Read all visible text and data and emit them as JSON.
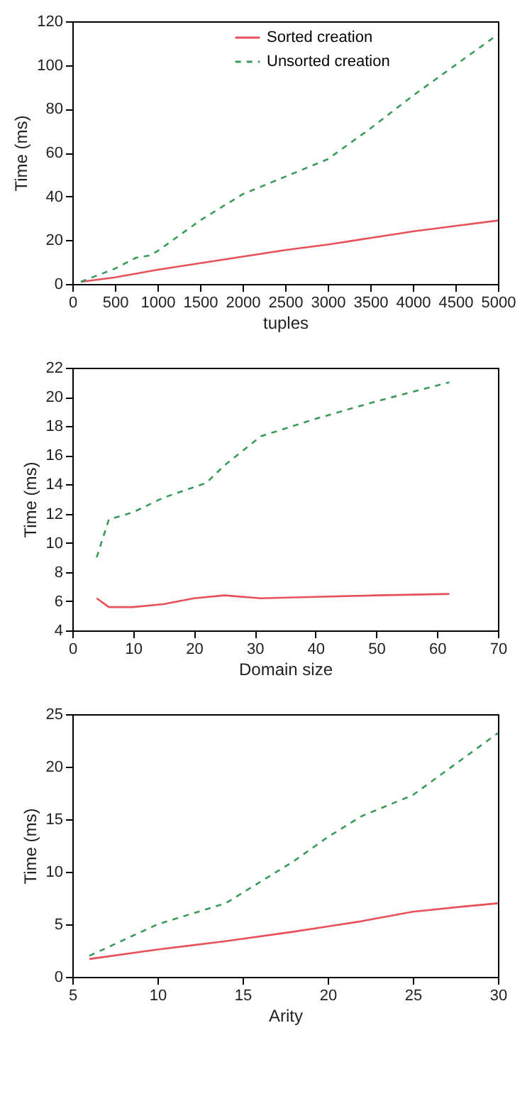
{
  "chart_data": [
    {
      "type": "line",
      "xlabel": "tuples",
      "ylabel": "Time (ms)",
      "xlim": [
        0,
        5000
      ],
      "ylim": [
        0,
        120
      ],
      "xticks": [
        0,
        500,
        1000,
        1500,
        2000,
        2500,
        3000,
        3500,
        4000,
        4500,
        5000
      ],
      "yticks": [
        0,
        20,
        40,
        60,
        80,
        100,
        120
      ],
      "legend": "top",
      "grid": false,
      "series": [
        {
          "name": "Sorted creation",
          "color": "#e8505a",
          "line_style": "solid",
          "x": [
            100,
            500,
            1000,
            1500,
            2000,
            2500,
            3000,
            3500,
            4000,
            4500,
            5000
          ],
          "values": [
            1,
            3,
            6.5,
            9.5,
            12.5,
            15.5,
            18,
            21,
            24,
            26.5,
            29
          ]
        },
        {
          "name": "Unsorted creation",
          "color": "#3a9a5a",
          "line_style": "dashed",
          "x": [
            100,
            500,
            750,
            900,
            1000,
            1500,
            2000,
            2500,
            3000,
            3500,
            4000,
            4500,
            5000
          ],
          "values": [
            1,
            7,
            12,
            13,
            15,
            29,
            41,
            49,
            57,
            71,
            86,
            100,
            114
          ]
        }
      ]
    },
    {
      "type": "line",
      "xlabel": "Domain size",
      "ylabel": "Time (ms)",
      "xlim": [
        0,
        70
      ],
      "ylim": [
        4,
        22
      ],
      "xticks": [
        0,
        10,
        20,
        30,
        40,
        50,
        60,
        70
      ],
      "yticks": [
        4,
        6,
        8,
        10,
        12,
        14,
        16,
        18,
        20,
        22
      ],
      "legend": "top",
      "grid": false,
      "series": [
        {
          "name": "Sorted creation",
          "color": "#e8505a",
          "line_style": "solid",
          "x": [
            4,
            6,
            10,
            15,
            20,
            25,
            31,
            40,
            50,
            62
          ],
          "values": [
            6.2,
            5.6,
            5.6,
            5.8,
            6.2,
            6.4,
            6.2,
            6.3,
            6.4,
            6.5
          ]
        },
        {
          "name": "Unsorted creation",
          "color": "#3a9a5a",
          "line_style": "dashed",
          "x": [
            4,
            6,
            10,
            15,
            22,
            25,
            31,
            40,
            50,
            62
          ],
          "values": [
            9,
            11.6,
            12.1,
            13.1,
            14.1,
            15.3,
            17.3,
            18.5,
            19.7,
            21
          ]
        }
      ]
    },
    {
      "type": "line",
      "xlabel": "Arity",
      "ylabel": "Time (ms)",
      "xlim": [
        5,
        30
      ],
      "ylim": [
        0,
        25
      ],
      "xticks": [
        5,
        10,
        15,
        20,
        25,
        30
      ],
      "yticks": [
        0,
        5,
        10,
        15,
        20,
        25
      ],
      "legend": "top",
      "grid": false,
      "series": [
        {
          "name": "Sorted creation",
          "color": "#e8505a",
          "line_style": "solid",
          "x": [
            6,
            10,
            14,
            18,
            20,
            22,
            25,
            28,
            30
          ],
          "values": [
            1.7,
            2.6,
            3.4,
            4.3,
            4.8,
            5.3,
            6.2,
            6.7,
            7
          ]
        },
        {
          "name": "Unsorted creation",
          "color": "#3a9a5a",
          "line_style": "dashed",
          "x": [
            6,
            10,
            14,
            15,
            18,
            20,
            22,
            25,
            30
          ],
          "values": [
            2,
            5,
            7,
            8,
            11,
            13.3,
            15.3,
            17.3,
            23.2
          ]
        }
      ]
    }
  ]
}
